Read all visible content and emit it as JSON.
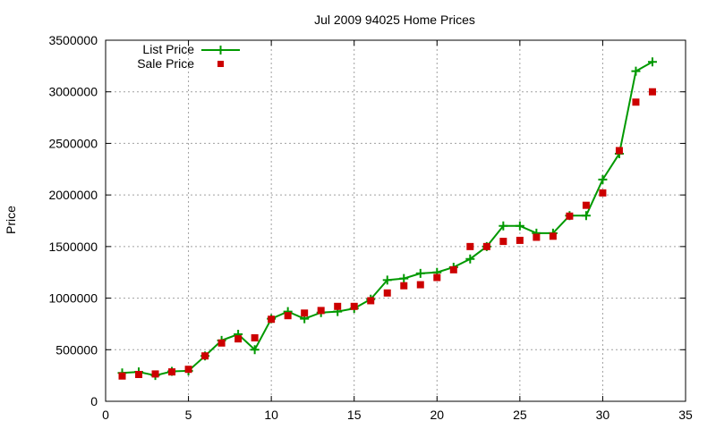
{
  "chart_data": {
    "type": "line",
    "title": "Jul 2009 94025 Home Prices",
    "xlabel": "",
    "ylabel": "Price",
    "xlim": [
      0,
      35
    ],
    "ylim": [
      0,
      3500000
    ],
    "xticks": [
      0,
      5,
      10,
      15,
      20,
      25,
      30,
      35
    ],
    "yticks": [
      0,
      500000,
      1000000,
      1500000,
      2000000,
      2500000,
      3000000,
      3500000
    ],
    "grid": true,
    "legend_position": "top-left",
    "series": [
      {
        "name": "List Price",
        "style": "line+cross",
        "color": "#009900",
        "x": [
          1,
          2,
          3,
          4,
          5,
          6,
          7,
          8,
          9,
          10,
          11,
          12,
          13,
          14,
          15,
          16,
          17,
          18,
          19,
          20,
          21,
          22,
          23,
          24,
          25,
          26,
          27,
          28,
          29,
          30,
          31,
          32,
          33
        ],
        "values": [
          275000,
          285000,
          250000,
          290000,
          295000,
          440000,
          590000,
          650000,
          500000,
          800000,
          870000,
          800000,
          860000,
          870000,
          900000,
          990000,
          1175000,
          1190000,
          1240000,
          1250000,
          1300000,
          1380000,
          1500000,
          1700000,
          1700000,
          1630000,
          1630000,
          1800000,
          1800000,
          2150000,
          2400000,
          3200000,
          3290000
        ]
      },
      {
        "name": "Sale Price",
        "style": "square",
        "color": "#cc0000",
        "x": [
          1,
          2,
          3,
          4,
          5,
          6,
          7,
          8,
          9,
          10,
          11,
          12,
          13,
          14,
          15,
          16,
          17,
          18,
          19,
          20,
          21,
          22,
          23,
          24,
          25,
          26,
          27,
          28,
          29,
          30,
          31,
          32,
          33
        ],
        "values": [
          245000,
          260000,
          265000,
          285000,
          310000,
          440000,
          565000,
          605000,
          615000,
          795000,
          830000,
          855000,
          880000,
          920000,
          920000,
          975000,
          1050000,
          1120000,
          1130000,
          1200000,
          1275000,
          1500000,
          1500000,
          1550000,
          1560000,
          1590000,
          1600000,
          1795000,
          1900000,
          2020000,
          2430000,
          2900000,
          3000000
        ]
      }
    ]
  }
}
